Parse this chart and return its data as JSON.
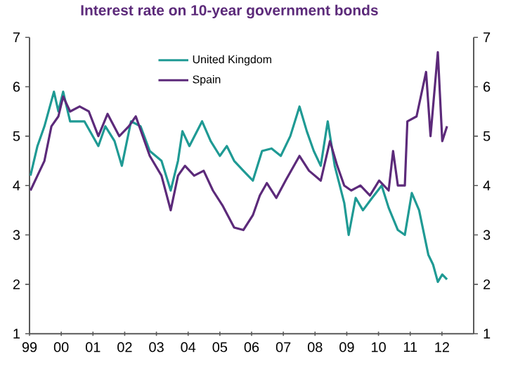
{
  "chart_data": {
    "type": "line",
    "title": "Interest rate on 10-year government bonds",
    "xlim": [
      1999,
      2013
    ],
    "ylim": [
      1,
      7
    ],
    "y2lim": [
      1,
      7
    ],
    "xticks": [
      {
        "value": 1999,
        "label": "99"
      },
      {
        "value": 2000,
        "label": "00"
      },
      {
        "value": 2001,
        "label": "01"
      },
      {
        "value": 2002,
        "label": "02"
      },
      {
        "value": 2003,
        "label": "03"
      },
      {
        "value": 2004,
        "label": "04"
      },
      {
        "value": 2005,
        "label": "05"
      },
      {
        "value": 2006,
        "label": "06"
      },
      {
        "value": 2007,
        "label": "07"
      },
      {
        "value": 2008,
        "label": "08"
      },
      {
        "value": 2009,
        "label": "09"
      },
      {
        "value": 2010,
        "label": "10"
      },
      {
        "value": 2011,
        "label": "11"
      },
      {
        "value": 2012,
        "label": "12"
      }
    ],
    "yticks": [
      1,
      2,
      3,
      4,
      5,
      6,
      7
    ],
    "y2ticks": [
      1,
      2,
      3,
      4,
      5,
      6,
      7
    ],
    "legend": "top",
    "marker": "none",
    "line_style": "solid",
    "series": [
      {
        "name": "United Kingdom",
        "color": "#1f9a94",
        "x": [
          1999.03,
          1999.25,
          1999.47,
          1999.77,
          1999.91,
          2000.06,
          2000.28,
          2000.73,
          2001.17,
          2001.39,
          2001.68,
          2001.91,
          2002.2,
          2002.5,
          2002.79,
          2003.16,
          2003.45,
          2003.68,
          2003.82,
          2004.04,
          2004.44,
          2004.71,
          2005.0,
          2005.22,
          2005.45,
          2005.74,
          2006.04,
          2006.33,
          2006.63,
          2006.92,
          2007.22,
          2007.51,
          2007.74,
          2007.96,
          2008.18,
          2008.4,
          2008.62,
          2008.92,
          2009.06,
          2009.28,
          2009.51,
          2009.8,
          2010.1,
          2010.32,
          2010.61,
          2010.83,
          2011.05,
          2011.28,
          2011.57,
          2011.72,
          2011.87,
          2012.01,
          2012.16
        ],
        "values": [
          4.2,
          4.8,
          5.2,
          5.9,
          5.5,
          5.9,
          5.3,
          5.3,
          4.8,
          5.2,
          4.9,
          4.4,
          5.3,
          5.2,
          4.7,
          4.5,
          3.9,
          4.5,
          5.1,
          4.8,
          5.3,
          4.9,
          4.6,
          4.8,
          4.5,
          4.3,
          4.1,
          4.7,
          4.75,
          4.6,
          5.0,
          5.6,
          5.1,
          4.7,
          4.4,
          5.3,
          4.4,
          3.65,
          3.0,
          3.75,
          3.5,
          3.75,
          4.0,
          3.55,
          3.1,
          3.0,
          3.85,
          3.5,
          2.6,
          2.4,
          2.05,
          2.2,
          2.1
        ]
      },
      {
        "name": "Spain",
        "color": "#5c2a7a",
        "x": [
          1999.03,
          1999.25,
          1999.47,
          1999.69,
          1999.91,
          2000.06,
          2000.28,
          2000.58,
          2000.87,
          2001.17,
          2001.46,
          2001.83,
          2002.13,
          2002.35,
          2002.57,
          2002.79,
          2003.16,
          2003.45,
          2003.68,
          2003.9,
          2004.19,
          2004.49,
          2004.78,
          2005.08,
          2005.45,
          2005.74,
          2006.04,
          2006.26,
          2006.48,
          2006.78,
          2007.07,
          2007.51,
          2007.81,
          2008.18,
          2008.47,
          2008.7,
          2008.92,
          2009.14,
          2009.43,
          2009.73,
          2010.02,
          2010.32,
          2010.46,
          2010.61,
          2010.83,
          2010.91,
          2011.2,
          2011.5,
          2011.64,
          2011.87,
          2012.01,
          2012.16
        ],
        "values": [
          3.9,
          4.2,
          4.5,
          5.2,
          5.4,
          5.8,
          5.5,
          5.6,
          5.5,
          5.0,
          5.45,
          5.0,
          5.2,
          5.4,
          5.0,
          4.6,
          4.2,
          3.5,
          4.2,
          4.4,
          4.2,
          4.3,
          3.9,
          3.6,
          3.15,
          3.1,
          3.4,
          3.8,
          4.05,
          3.75,
          4.1,
          4.6,
          4.3,
          4.1,
          4.9,
          4.4,
          4.0,
          3.9,
          4.0,
          3.8,
          4.1,
          3.9,
          4.7,
          4.0,
          4.0,
          5.3,
          5.4,
          6.3,
          5.0,
          6.7,
          4.9,
          5.2
        ]
      }
    ]
  }
}
